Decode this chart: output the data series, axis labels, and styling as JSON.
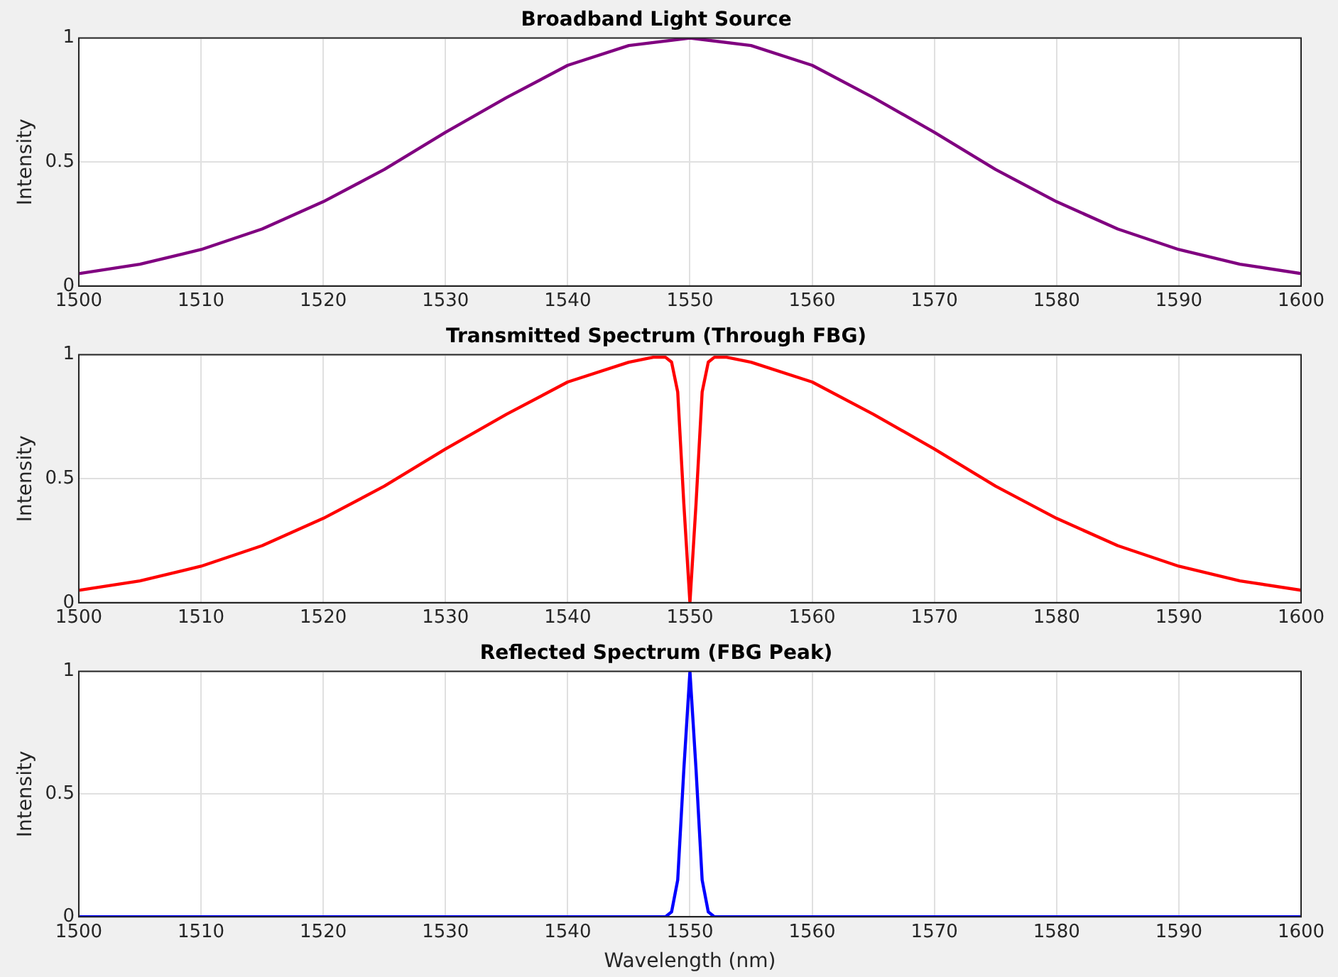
{
  "chart_data": [
    {
      "type": "line",
      "title": "Broadband Light Source",
      "ylabel": "Intensity",
      "x": [
        1500,
        1505,
        1510,
        1515,
        1520,
        1525,
        1530,
        1535,
        1540,
        1545,
        1550,
        1555,
        1560,
        1565,
        1570,
        1575,
        1580,
        1585,
        1590,
        1595,
        1600
      ],
      "series": [
        {
          "color": "#800080",
          "values": [
            0.05,
            0.088,
            0.147,
            0.23,
            0.34,
            0.47,
            0.62,
            0.76,
            0.89,
            0.97,
            1,
            0.97,
            0.89,
            0.76,
            0.62,
            0.47,
            0.34,
            0.23,
            0.147,
            0.088,
            0.05
          ]
        }
      ],
      "xlim": [
        1500,
        1600
      ],
      "xticks": [
        1500,
        1510,
        1520,
        1530,
        1540,
        1550,
        1560,
        1570,
        1580,
        1590,
        1600
      ],
      "ylim": [
        0,
        1
      ],
      "yticks": [
        0,
        0.5,
        1
      ],
      "grid": true,
      "marker": "none",
      "line_style": "solid"
    },
    {
      "type": "line",
      "title": "Transmitted Spectrum (Through FBG)",
      "ylabel": "Intensity",
      "x": [
        1500,
        1505,
        1510,
        1515,
        1520,
        1525,
        1530,
        1535,
        1540,
        1545,
        1547,
        1548,
        1548.5,
        1549,
        1549.5,
        1550,
        1550.5,
        1551,
        1551.5,
        1552,
        1553,
        1555,
        1560,
        1565,
        1570,
        1575,
        1580,
        1585,
        1590,
        1595,
        1600
      ],
      "series": [
        {
          "color": "#ff0000",
          "values": [
            0.05,
            0.088,
            0.147,
            0.23,
            0.34,
            0.47,
            0.62,
            0.76,
            0.89,
            0.97,
            0.99,
            0.99,
            0.97,
            0.85,
            0.4,
            0,
            0.4,
            0.85,
            0.97,
            0.99,
            0.99,
            0.97,
            0.89,
            0.76,
            0.62,
            0.47,
            0.34,
            0.23,
            0.147,
            0.088,
            0.05
          ]
        }
      ],
      "xlim": [
        1500,
        1600
      ],
      "xticks": [
        1500,
        1510,
        1520,
        1530,
        1540,
        1550,
        1560,
        1570,
        1580,
        1590,
        1600
      ],
      "ylim": [
        0,
        1
      ],
      "yticks": [
        0,
        0.5,
        1
      ],
      "grid": true,
      "marker": "none",
      "line_style": "solid"
    },
    {
      "type": "line",
      "title": "Reflected Spectrum (FBG Peak)",
      "ylabel": "Intensity",
      "xlabel": "Wavelength (nm)",
      "x": [
        1500,
        1520,
        1540,
        1547,
        1548,
        1548.5,
        1549,
        1549.5,
        1550,
        1550.5,
        1551,
        1551.5,
        1552,
        1553,
        1560,
        1580,
        1600
      ],
      "series": [
        {
          "color": "#0000ff",
          "values": [
            0,
            0,
            0,
            0,
            0,
            0.02,
            0.15,
            0.6,
            1,
            0.6,
            0.15,
            0.02,
            0,
            0,
            0,
            0,
            0
          ]
        }
      ],
      "xlim": [
        1500,
        1600
      ],
      "xticks": [
        1500,
        1510,
        1520,
        1530,
        1540,
        1550,
        1560,
        1570,
        1580,
        1590,
        1600
      ],
      "ylim": [
        0,
        1
      ],
      "yticks": [
        0,
        0.5,
        1
      ],
      "grid": true,
      "marker": "none",
      "line_style": "solid"
    }
  ]
}
